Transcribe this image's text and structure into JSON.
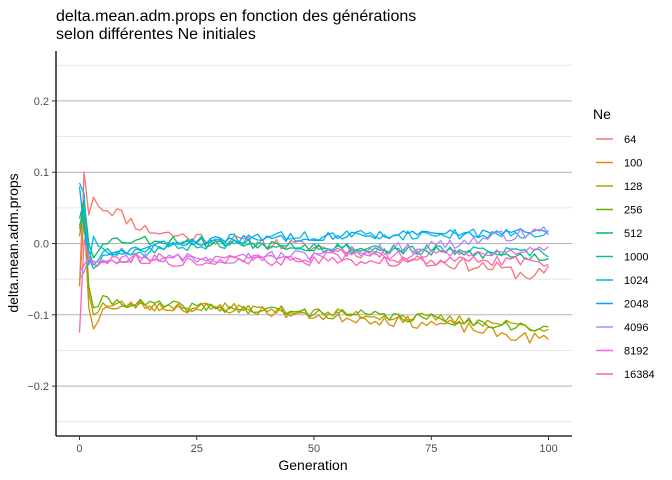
{
  "chart_data": {
    "type": "line",
    "title_lines": [
      "delta.mean.adm.props en fonction des générations",
      " selon différentes Ne initiales"
    ],
    "xlabel": "Generation",
    "ylabel": "delta.mean.adm.props",
    "xlim": [
      -5,
      105
    ],
    "ylim": [
      -0.27,
      0.27
    ],
    "xticks": [
      0,
      25,
      50,
      75,
      100
    ],
    "yticks": [
      -0.2,
      -0.1,
      0.0,
      0.1,
      0.2
    ],
    "ytick_labels": [
      "−0.2",
      "−0.1",
      "0.0",
      "0.1",
      "0.2"
    ],
    "yminor": [
      -0.25,
      -0.15,
      -0.05,
      0.05,
      0.15,
      0.25
    ],
    "grid": true,
    "legend": {
      "title": "Ne",
      "position": "right"
    },
    "series": [
      {
        "name": "64",
        "color": "#F8766D",
        "anchors": [
          [
            0,
            -0.06
          ],
          [
            1,
            0.1
          ],
          [
            2,
            0.04
          ],
          [
            3,
            0.065
          ],
          [
            5,
            0.05
          ],
          [
            8,
            0.045
          ],
          [
            10,
            0.035
          ],
          [
            14,
            0.02
          ],
          [
            20,
            0.012
          ],
          [
            30,
            0.005
          ],
          [
            40,
            0.0
          ],
          [
            50,
            -0.005
          ],
          [
            60,
            -0.012
          ],
          [
            70,
            -0.02
          ],
          [
            80,
            -0.028
          ],
          [
            90,
            -0.035
          ],
          [
            95,
            -0.045
          ],
          [
            100,
            -0.04
          ]
        ],
        "amp": 0.009,
        "seed": 11
      },
      {
        "name": "100",
        "color": "#DB8E00",
        "anchors": [
          [
            0,
            -0.06
          ],
          [
            1,
            0.04
          ],
          [
            2,
            -0.09
          ],
          [
            3,
            -0.12
          ],
          [
            5,
            -0.09
          ],
          [
            10,
            -0.085
          ],
          [
            20,
            -0.09
          ],
          [
            30,
            -0.09
          ],
          [
            40,
            -0.095
          ],
          [
            50,
            -0.1
          ],
          [
            60,
            -0.105
          ],
          [
            70,
            -0.11
          ],
          [
            80,
            -0.115
          ],
          [
            90,
            -0.128
          ],
          [
            100,
            -0.135
          ]
        ],
        "amp": 0.008,
        "seed": 23
      },
      {
        "name": "128",
        "color": "#AEA200",
        "anchors": [
          [
            0,
            0.02
          ],
          [
            1,
            0.06
          ],
          [
            2,
            -0.07
          ],
          [
            3,
            -0.1
          ],
          [
            5,
            -0.085
          ],
          [
            10,
            -0.085
          ],
          [
            20,
            -0.09
          ],
          [
            30,
            -0.09
          ],
          [
            40,
            -0.093
          ],
          [
            50,
            -0.097
          ],
          [
            60,
            -0.1
          ],
          [
            70,
            -0.103
          ],
          [
            80,
            -0.107
          ],
          [
            90,
            -0.112
          ],
          [
            100,
            -0.118
          ]
        ],
        "amp": 0.007,
        "seed": 37
      },
      {
        "name": "256",
        "color": "#64B200",
        "anchors": [
          [
            0,
            0.01
          ],
          [
            1,
            0.05
          ],
          [
            2,
            -0.06
          ],
          [
            3,
            -0.09
          ],
          [
            5,
            -0.08
          ],
          [
            10,
            -0.083
          ],
          [
            20,
            -0.088
          ],
          [
            30,
            -0.09
          ],
          [
            40,
            -0.094
          ],
          [
            50,
            -0.098
          ],
          [
            60,
            -0.1
          ],
          [
            70,
            -0.104
          ],
          [
            80,
            -0.108
          ],
          [
            90,
            -0.113
          ],
          [
            100,
            -0.122
          ]
        ],
        "amp": 0.007,
        "seed": 41
      },
      {
        "name": "512",
        "color": "#00BD5C",
        "anchors": [
          [
            0,
            0.035
          ],
          [
            1,
            0.06
          ],
          [
            2,
            0.0
          ],
          [
            3,
            -0.02
          ],
          [
            5,
            0.005
          ],
          [
            10,
            0.005
          ],
          [
            20,
            0.005
          ],
          [
            30,
            0.0
          ],
          [
            40,
            0.0
          ],
          [
            50,
            -0.005
          ],
          [
            60,
            -0.008
          ],
          [
            70,
            -0.01
          ],
          [
            80,
            -0.013
          ],
          [
            90,
            -0.016
          ],
          [
            100,
            -0.02
          ]
        ],
        "amp": 0.007,
        "seed": 53
      },
      {
        "name": "1000",
        "color": "#00C1A7",
        "anchors": [
          [
            0,
            0.025
          ],
          [
            1,
            0.05
          ],
          [
            2,
            -0.01
          ],
          [
            3,
            -0.03
          ],
          [
            5,
            -0.01
          ],
          [
            10,
            -0.01
          ],
          [
            20,
            -0.005
          ],
          [
            30,
            0.0
          ],
          [
            40,
            0.0
          ],
          [
            50,
            -0.003
          ],
          [
            60,
            -0.005
          ],
          [
            70,
            -0.008
          ],
          [
            80,
            -0.01
          ],
          [
            90,
            -0.012
          ],
          [
            100,
            -0.015
          ]
        ],
        "amp": 0.007,
        "seed": 67
      },
      {
        "name": "1024",
        "color": "#00BADE",
        "anchors": [
          [
            0,
            0.085
          ],
          [
            1,
            0.07
          ],
          [
            2,
            -0.03
          ],
          [
            3,
            0.01
          ],
          [
            5,
            -0.01
          ],
          [
            10,
            -0.02
          ],
          [
            20,
            0.0
          ],
          [
            30,
            0.005
          ],
          [
            40,
            0.01
          ],
          [
            50,
            0.01
          ],
          [
            60,
            0.012
          ],
          [
            70,
            0.012
          ],
          [
            80,
            0.013
          ],
          [
            90,
            0.014
          ],
          [
            100,
            0.015
          ]
        ],
        "amp": 0.007,
        "seed": 71
      },
      {
        "name": "2048",
        "color": "#00A6FF",
        "anchors": [
          [
            0,
            0.08
          ],
          [
            1,
            0.02
          ],
          [
            2,
            -0.02
          ],
          [
            3,
            -0.035
          ],
          [
            5,
            -0.02
          ],
          [
            10,
            -0.01
          ],
          [
            20,
            0.0
          ],
          [
            30,
            0.005
          ],
          [
            40,
            0.008
          ],
          [
            50,
            0.01
          ],
          [
            60,
            0.012
          ],
          [
            70,
            0.013
          ],
          [
            80,
            0.014
          ],
          [
            90,
            0.015
          ],
          [
            100,
            0.016
          ]
        ],
        "amp": 0.006,
        "seed": 83
      },
      {
        "name": "4096",
        "color": "#B385FF",
        "anchors": [
          [
            0,
            -0.05
          ],
          [
            1,
            -0.04
          ],
          [
            2,
            -0.02
          ],
          [
            3,
            -0.025
          ],
          [
            5,
            -0.02
          ],
          [
            10,
            -0.02
          ],
          [
            20,
            -0.02
          ],
          [
            30,
            -0.02
          ],
          [
            40,
            -0.018
          ],
          [
            50,
            -0.015
          ],
          [
            60,
            -0.01
          ],
          [
            70,
            -0.005
          ],
          [
            80,
            0.0
          ],
          [
            90,
            0.01
          ],
          [
            100,
            0.018
          ]
        ],
        "amp": 0.008,
        "seed": 97
      },
      {
        "name": "8192",
        "color": "#EF67EB",
        "anchors": [
          [
            0,
            -0.04
          ],
          [
            1,
            -0.03
          ],
          [
            2,
            -0.02
          ],
          [
            3,
            -0.03
          ],
          [
            5,
            -0.025
          ],
          [
            10,
            -0.02
          ],
          [
            20,
            -0.02
          ],
          [
            30,
            -0.022
          ],
          [
            40,
            -0.022
          ],
          [
            50,
            -0.02
          ],
          [
            60,
            -0.018
          ],
          [
            70,
            -0.016
          ],
          [
            80,
            -0.014
          ],
          [
            90,
            -0.012
          ],
          [
            100,
            -0.01
          ]
        ],
        "amp": 0.007,
        "seed": 103
      },
      {
        "name": "16384",
        "color": "#FF63B6",
        "anchors": [
          [
            0,
            -0.125
          ],
          [
            1,
            0.005
          ],
          [
            2,
            -0.02
          ],
          [
            3,
            -0.03
          ],
          [
            5,
            -0.025
          ],
          [
            10,
            -0.02
          ],
          [
            20,
            -0.025
          ],
          [
            30,
            -0.025
          ],
          [
            40,
            -0.025
          ],
          [
            50,
            -0.025
          ],
          [
            60,
            -0.025
          ],
          [
            70,
            -0.025
          ],
          [
            80,
            -0.025
          ],
          [
            90,
            -0.025
          ],
          [
            100,
            -0.025
          ]
        ],
        "amp": 0.007,
        "seed": 113
      }
    ]
  }
}
